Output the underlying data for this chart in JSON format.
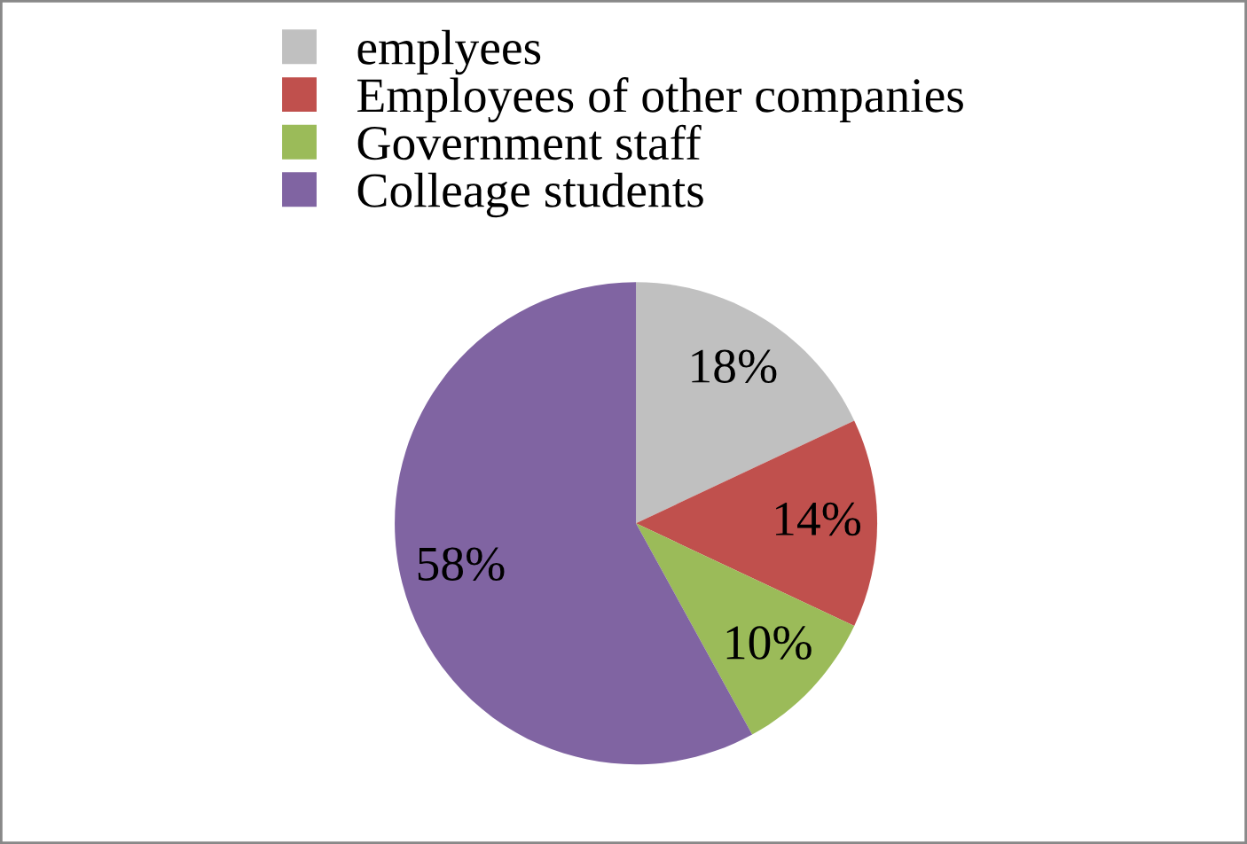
{
  "chart_data": {
    "type": "pie",
    "categories": [
      "emplyees",
      "Employees of other companies",
      "Government staff",
      "Colleage students"
    ],
    "values": [
      18,
      14,
      10,
      58
    ],
    "value_labels": [
      "18%",
      "14%",
      "10%",
      "58%"
    ],
    "colors": [
      "#c0c0c0",
      "#c0504d",
      "#9bbb59",
      "#8064a2"
    ],
    "legend": "top"
  }
}
